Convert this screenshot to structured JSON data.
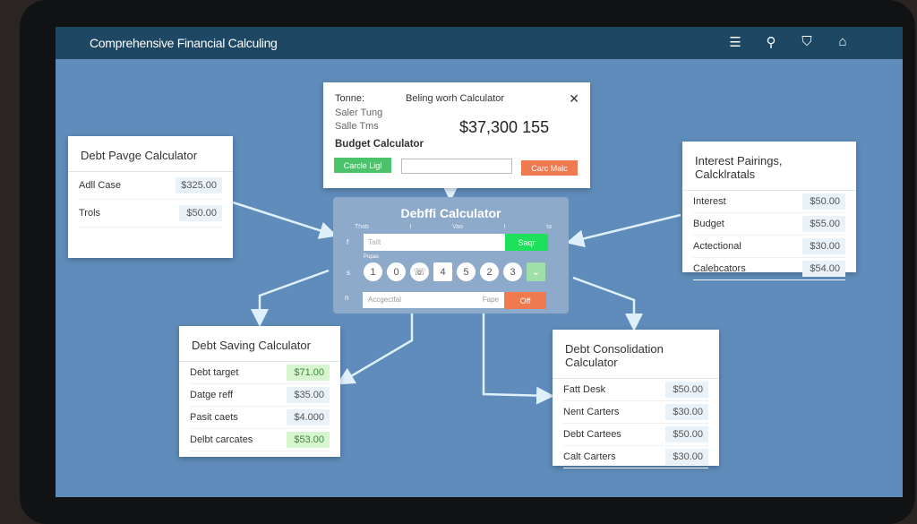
{
  "header": {
    "title": "Comprehensive Financial Calculing",
    "icons": [
      "menu-icon",
      "search-icon",
      "shield-icon",
      "home-icon"
    ]
  },
  "popup": {
    "label": "Tonne:",
    "title": "Beling worh Calculator",
    "line1": "Saler Tung",
    "line2": "Salle Tms",
    "amount": "$37,300 155",
    "subtitle": "Budget Calculator",
    "green_button": "Carcle Ligl",
    "orange_button": "Carc Malc",
    "input_value": ""
  },
  "center": {
    "title": "Debffi Calculator",
    "col_labels": [
      "Thab",
      "I",
      "Vao",
      "I",
      "ta"
    ],
    "row_labels": [
      "f",
      "s",
      "n"
    ],
    "field_placeholder": "Tailt",
    "search_button": "Saqr",
    "keys_label": "Pupas",
    "keys": [
      "1",
      "0",
      "",
      "4",
      "5",
      "2",
      "3"
    ],
    "bottom_placeholder": "Accgectfal",
    "bottom_mid": "Fape",
    "off_button": "Off"
  },
  "debt_payoff": {
    "title": "Debt Pavge Calculator",
    "rows": [
      {
        "label": "Adll Case",
        "value": "$325.00"
      },
      {
        "label": "Trols",
        "value": "$50.00"
      }
    ]
  },
  "interest": {
    "title": "Interest Pairings, Calcklratals",
    "rows": [
      {
        "label": "Interest",
        "value": "$50.00"
      },
      {
        "label": "Budget",
        "value": "$55.00"
      },
      {
        "label": "Actectional",
        "value": "$30.00"
      },
      {
        "label": "Calebcators",
        "value": "$54.00"
      }
    ]
  },
  "saving": {
    "title": "Debt Saving Calculator",
    "rows": [
      {
        "label": "Debt target",
        "value": "$71.00",
        "highlight": true
      },
      {
        "label": "Datge reff",
        "value": "$35.00"
      },
      {
        "label": "Pasit caets",
        "value": "$4.000"
      },
      {
        "label": "Delbt carcates",
        "value": "$53.00",
        "highlight": true
      }
    ]
  },
  "consolidation": {
    "title": "Debt Consolidation Calculator",
    "rows": [
      {
        "label": "Fatt Desk",
        "value": "$50.00"
      },
      {
        "label": "Nent Carters",
        "value": "$30.00"
      },
      {
        "label": "Debt Cartees",
        "value": "$50.00"
      },
      {
        "label": "Calt Carters",
        "value": "$30.00"
      }
    ]
  },
  "colors": {
    "header": "#1d4763",
    "screen": "#5f8cba",
    "green": "#4cc36a",
    "orange": "#f07a50",
    "bright_green": "#1ee05a"
  }
}
